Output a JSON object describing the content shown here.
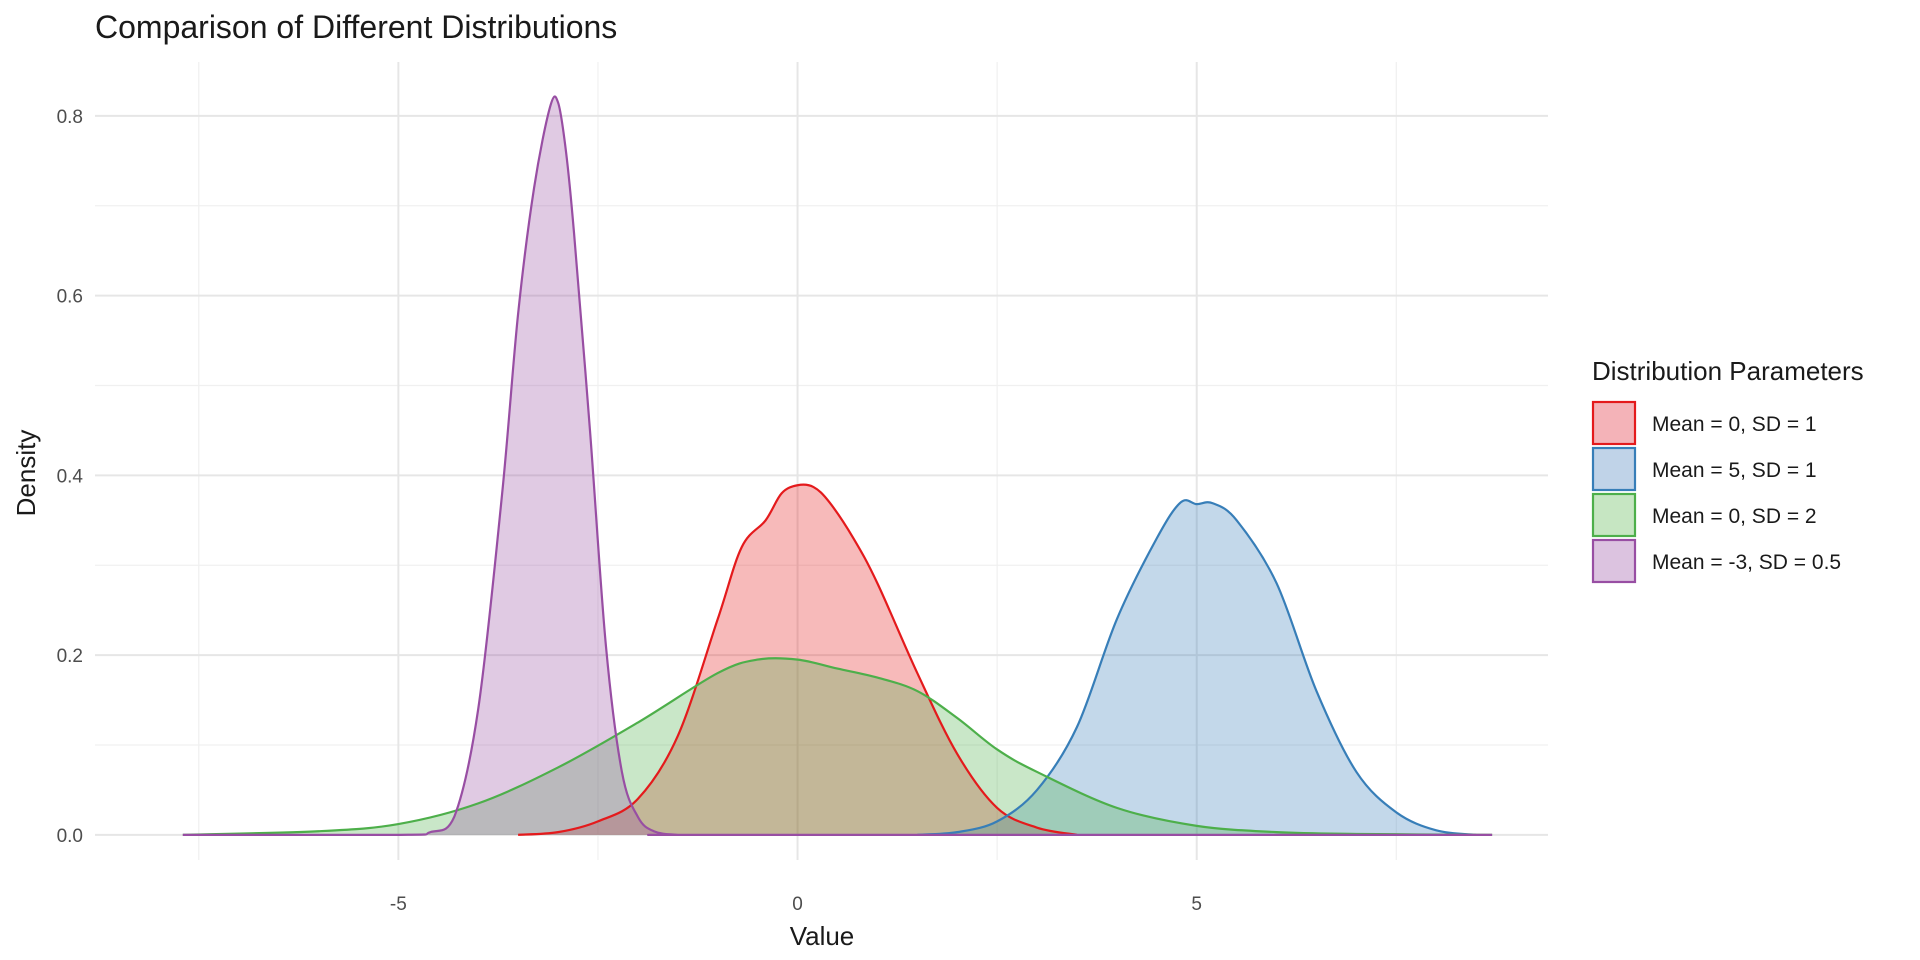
{
  "chart_data": {
    "type": "area",
    "title": "Comparison of Different Distributions",
    "xlabel": "Value",
    "ylabel": "Density",
    "xlim": [
      -8.8,
      9.4
    ],
    "ylim": [
      -0.028,
      0.86
    ],
    "x_ticks": [
      -5,
      0,
      5
    ],
    "x_tick_labels": [
      "-5",
      "0",
      "5"
    ],
    "y_ticks": [
      0.0,
      0.2,
      0.4,
      0.6,
      0.8
    ],
    "y_tick_labels": [
      "0.0",
      "0.2",
      "0.4",
      "0.6",
      "0.8"
    ],
    "grid": true,
    "legend": {
      "title": "Distribution Parameters",
      "position": "right"
    },
    "series": [
      {
        "name": "Mean = 0, SD = 1",
        "color": "#e41a1c",
        "fill": "#f4b3b8",
        "x": [
          -3.5,
          -3.0,
          -2.5,
          -2.0,
          -1.5,
          -1.0,
          -0.7,
          -0.4,
          -0.2,
          0.0,
          0.2,
          0.4,
          0.7,
          1.0,
          1.5,
          2.0,
          2.5,
          3.0,
          3.5
        ],
        "y": [
          0.0,
          0.003,
          0.015,
          0.04,
          0.11,
          0.24,
          0.32,
          0.35,
          0.38,
          0.389,
          0.387,
          0.37,
          0.33,
          0.28,
          0.18,
          0.09,
          0.03,
          0.008,
          0.0
        ]
      },
      {
        "name": "Mean = 5, SD = 1",
        "color": "#377eb8",
        "fill": "#c0d3e8",
        "x": [
          1.5,
          2.0,
          2.5,
          3.0,
          3.5,
          4.0,
          4.5,
          4.8,
          5.0,
          5.2,
          5.5,
          6.0,
          6.5,
          7.0,
          7.5,
          8.0,
          8.5
        ],
        "y": [
          0.0,
          0.003,
          0.015,
          0.05,
          0.12,
          0.24,
          0.33,
          0.37,
          0.368,
          0.369,
          0.35,
          0.28,
          0.16,
          0.07,
          0.025,
          0.005,
          0.0
        ]
      },
      {
        "name": "Mean = 0, SD = 2",
        "color": "#4daf4a",
        "fill": "#c6e6c2",
        "x": [
          -7.7,
          -6.0,
          -5.0,
          -4.0,
          -3.0,
          -2.0,
          -1.0,
          -0.5,
          0.0,
          0.5,
          1.0,
          1.5,
          2.0,
          2.5,
          3.0,
          4.0,
          5.0,
          6.0,
          7.0,
          8.7
        ],
        "y": [
          0.0,
          0.004,
          0.012,
          0.035,
          0.075,
          0.125,
          0.18,
          0.195,
          0.195,
          0.185,
          0.175,
          0.16,
          0.13,
          0.095,
          0.07,
          0.03,
          0.01,
          0.003,
          0.001,
          0.0
        ]
      },
      {
        "name": "Mean = -3, SD = 0.5",
        "color": "#984ea3",
        "fill": "#dcc3e0",
        "x": [
          -7.7,
          -5.0,
          -4.6,
          -4.3,
          -4.0,
          -3.7,
          -3.5,
          -3.3,
          -3.1,
          -3.0,
          -2.9,
          -2.8,
          -2.6,
          -2.4,
          -2.2,
          -2.0,
          -1.8,
          -1.5,
          -1.0,
          8.7
        ],
        "y": [
          0.0,
          0.0,
          0.003,
          0.02,
          0.14,
          0.38,
          0.58,
          0.72,
          0.81,
          0.815,
          0.76,
          0.67,
          0.45,
          0.21,
          0.07,
          0.02,
          0.004,
          0.0,
          0.0,
          0.0
        ]
      }
    ]
  }
}
